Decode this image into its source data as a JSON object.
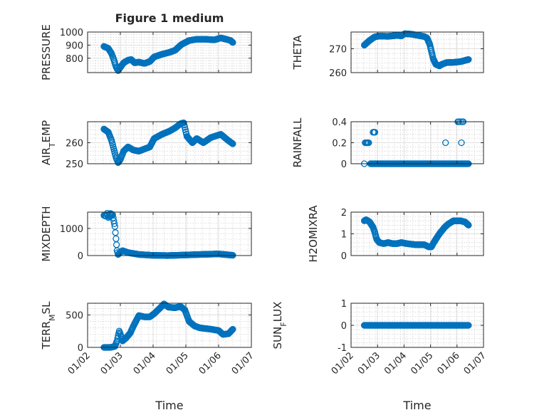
{
  "figure": {
    "title": "Figure 1 medium",
    "xlabel": "Time"
  },
  "colors": {
    "marker": "#0072bd",
    "axes": "#262626",
    "grid": "#dfdfdf",
    "background": "#ffffff"
  },
  "chart_data": [
    {
      "id": "pressure",
      "type": "scatter",
      "title": "Figure 1 medium",
      "ylabel": "PRESSURE",
      "xlabel": "",
      "ylim": [
        690,
        1000
      ],
      "yticks": [
        800,
        900,
        1000
      ],
      "xlim": [
        "2001-02-01",
        "2001-07-01"
      ],
      "xticks": [
        "01/02",
        "01/03",
        "01/04",
        "01/05",
        "01/06",
        "01/07"
      ],
      "show_xticklabels": false,
      "grid": true,
      "keypoints": [
        [
          "2001-02-16",
          890
        ],
        [
          "2001-02-20",
          875
        ],
        [
          "2001-02-23",
          835
        ],
        [
          "2001-02-25",
          790
        ],
        [
          "2001-02-27",
          735
        ],
        [
          "2001-03-01",
          705
        ],
        [
          "2001-03-03",
          730
        ],
        [
          "2001-03-06",
          765
        ],
        [
          "2001-03-10",
          785
        ],
        [
          "2001-03-13",
          790
        ],
        [
          "2001-03-16",
          765
        ],
        [
          "2001-03-20",
          770
        ],
        [
          "2001-03-25",
          760
        ],
        [
          "2001-03-30",
          775
        ],
        [
          "2001-04-03",
          810
        ],
        [
          "2001-04-10",
          830
        ],
        [
          "2001-04-17",
          845
        ],
        [
          "2001-04-22",
          860
        ],
        [
          "2001-04-28",
          905
        ],
        [
          "2001-05-05",
          935
        ],
        [
          "2001-05-12",
          945
        ],
        [
          "2001-05-20",
          945
        ],
        [
          "2001-05-28",
          940
        ],
        [
          "2001-06-03",
          955
        ],
        [
          "2001-06-08",
          945
        ],
        [
          "2001-06-12",
          935
        ],
        [
          "2001-06-14",
          920
        ]
      ]
    },
    {
      "id": "theta",
      "type": "scatter",
      "ylabel": "THETA",
      "xlabel": "",
      "ylim": [
        260,
        277
      ],
      "yticks": [
        260,
        270
      ],
      "xlim": [
        "2001-02-01",
        "2001-07-01"
      ],
      "xticks": [
        "01/02",
        "01/03",
        "01/04",
        "01/05",
        "01/06",
        "01/07"
      ],
      "show_xticklabels": false,
      "grid": true,
      "keypoints": [
        [
          "2001-02-16",
          271.5
        ],
        [
          "2001-02-22",
          273.5
        ],
        [
          "2001-02-28",
          275
        ],
        [
          "2001-03-05",
          275.3
        ],
        [
          "2001-03-15",
          275.2
        ],
        [
          "2001-03-25",
          275.6
        ],
        [
          "2001-03-30",
          275.4
        ],
        [
          "2001-04-03",
          276.3
        ],
        [
          "2001-04-10",
          276.1
        ],
        [
          "2001-04-18",
          275.6
        ],
        [
          "2001-04-25",
          275.1
        ],
        [
          "2001-04-28",
          274.5
        ],
        [
          "2001-05-01",
          272
        ],
        [
          "2001-05-03",
          269
        ],
        [
          "2001-05-05",
          265.8
        ],
        [
          "2001-05-08",
          263.5
        ],
        [
          "2001-05-12",
          262.8
        ],
        [
          "2001-05-15",
          263.5
        ],
        [
          "2001-05-20",
          264.2
        ],
        [
          "2001-05-28",
          264.3
        ],
        [
          "2001-06-05",
          264.6
        ],
        [
          "2001-06-14",
          265.5
        ]
      ]
    },
    {
      "id": "air_temp",
      "type": "scatter",
      "ylabel": "AIR_TEMP",
      "xlabel": "",
      "ylim": [
        250,
        270
      ],
      "yticks": [
        250,
        260
      ],
      "xlim": [
        "2001-02-01",
        "2001-07-01"
      ],
      "xticks": [
        "01/02",
        "01/03",
        "01/04",
        "01/05",
        "01/06",
        "01/07"
      ],
      "show_xticklabels": false,
      "grid": true,
      "keypoints": [
        [
          "2001-02-16",
          266.5
        ],
        [
          "2001-02-20",
          265
        ],
        [
          "2001-02-23",
          261
        ],
        [
          "2001-02-25",
          257
        ],
        [
          "2001-02-27",
          253
        ],
        [
          "2001-03-01",
          250.5
        ],
        [
          "2001-03-03",
          252
        ],
        [
          "2001-03-06",
          256
        ],
        [
          "2001-03-10",
          258
        ],
        [
          "2001-03-15",
          256.5
        ],
        [
          "2001-03-20",
          256
        ],
        [
          "2001-03-25",
          257
        ],
        [
          "2001-03-30",
          258
        ],
        [
          "2001-04-03",
          262
        ],
        [
          "2001-04-10",
          264
        ],
        [
          "2001-04-17",
          265.5
        ],
        [
          "2001-04-22",
          267
        ],
        [
          "2001-04-27",
          269
        ],
        [
          "2001-04-30",
          269.5
        ],
        [
          "2001-05-03",
          263
        ],
        [
          "2001-05-08",
          260
        ],
        [
          "2001-05-12",
          262
        ],
        [
          "2001-05-18",
          260
        ],
        [
          "2001-05-25",
          262.5
        ],
        [
          "2001-06-03",
          264
        ],
        [
          "2001-06-10",
          261
        ],
        [
          "2001-06-14",
          259.5
        ]
      ]
    },
    {
      "id": "rainfall",
      "type": "scatter",
      "ylabel": "RAINFALL",
      "xlabel": "",
      "ylim": [
        0,
        0.4
      ],
      "yticks": [
        0,
        0.2,
        0.4
      ],
      "xlim": [
        "2001-02-01",
        "2001-07-01"
      ],
      "xticks": [
        "01/02",
        "01/03",
        "01/04",
        "01/05",
        "01/06",
        "01/07"
      ],
      "show_xticklabels": false,
      "grid": true,
      "zero_range": [
        "2001-02-23",
        "2001-06-14"
      ],
      "extra_points": [
        [
          "2001-02-16",
          0
        ],
        [
          "2001-02-17",
          0.2
        ],
        [
          "2001-02-18",
          0.2
        ],
        [
          "2001-02-19",
          0.2
        ],
        [
          "2001-02-20",
          0.2
        ],
        [
          "2001-02-21",
          0.2
        ],
        [
          "2001-02-26",
          0.3
        ],
        [
          "2001-02-27",
          0.3
        ],
        [
          "2001-02-28",
          0.3
        ],
        [
          "2001-05-19",
          0.2
        ],
        [
          "2001-06-02",
          0.4
        ],
        [
          "2001-06-03",
          0.4
        ],
        [
          "2001-06-05",
          0.4
        ],
        [
          "2001-06-06",
          0.2
        ],
        [
          "2001-06-07",
          0.4
        ],
        [
          "2001-06-08",
          0.4
        ],
        [
          "2001-06-10",
          0
        ]
      ]
    },
    {
      "id": "mixdepth",
      "type": "scatter",
      "ylabel": "MIXDEPTH",
      "xlabel": "",
      "ylim": [
        0,
        1600
      ],
      "yticks": [
        0,
        1000
      ],
      "xlim": [
        "2001-02-01",
        "2001-07-01"
      ],
      "xticks": [
        "01/02",
        "01/03",
        "01/04",
        "01/05",
        "01/06",
        "01/07"
      ],
      "show_xticklabels": false,
      "grid": true,
      "keypoints": [
        [
          "2001-02-16",
          1480
        ],
        [
          "2001-02-18",
          1450
        ],
        [
          "2001-02-19",
          1560
        ],
        [
          "2001-02-20",
          1400
        ],
        [
          "2001-02-22",
          1550
        ],
        [
          "2001-02-24",
          1500
        ],
        [
          "2001-02-25",
          1280
        ],
        [
          "2001-02-26",
          1070
        ],
        [
          "2001-02-27",
          620
        ],
        [
          "2001-02-28",
          180
        ],
        [
          "2001-03-01",
          40
        ],
        [
          "2001-03-03",
          120
        ],
        [
          "2001-03-05",
          180
        ],
        [
          "2001-03-10",
          110
        ],
        [
          "2001-03-20",
          40
        ],
        [
          "2001-04-01",
          10
        ],
        [
          "2001-04-15",
          0
        ],
        [
          "2001-05-01",
          20
        ],
        [
          "2001-05-15",
          40
        ],
        [
          "2001-06-01",
          60
        ],
        [
          "2001-06-14",
          10
        ]
      ]
    },
    {
      "id": "h2omixra",
      "type": "scatter",
      "ylabel": "H2OMIXRA",
      "xlabel": "",
      "ylim": [
        0,
        2
      ],
      "yticks": [
        0,
        1,
        2
      ],
      "xlim": [
        "2001-02-01",
        "2001-07-01"
      ],
      "xticks": [
        "01/02",
        "01/03",
        "01/04",
        "01/05",
        "01/06",
        "01/07"
      ],
      "show_xticklabels": false,
      "grid": true,
      "keypoints": [
        [
          "2001-02-16",
          1.6
        ],
        [
          "2001-02-18",
          1.65
        ],
        [
          "2001-02-22",
          1.55
        ],
        [
          "2001-02-26",
          1.3
        ],
        [
          "2001-02-28",
          1.05
        ],
        [
          "2001-03-02",
          0.75
        ],
        [
          "2001-03-05",
          0.6
        ],
        [
          "2001-03-10",
          0.55
        ],
        [
          "2001-03-15",
          0.6
        ],
        [
          "2001-03-20",
          0.55
        ],
        [
          "2001-03-25",
          0.55
        ],
        [
          "2001-03-30",
          0.6
        ],
        [
          "2001-04-05",
          0.55
        ],
        [
          "2001-04-15",
          0.5
        ],
        [
          "2001-04-25",
          0.5
        ],
        [
          "2001-04-30",
          0.4
        ],
        [
          "2001-05-03",
          0.4
        ],
        [
          "2001-05-05",
          0.55
        ],
        [
          "2001-05-08",
          0.75
        ],
        [
          "2001-05-12",
          1.0
        ],
        [
          "2001-05-18",
          1.3
        ],
        [
          "2001-05-22",
          1.45
        ],
        [
          "2001-05-28",
          1.6
        ],
        [
          "2001-06-05",
          1.6
        ],
        [
          "2001-06-10",
          1.55
        ],
        [
          "2001-06-14",
          1.4
        ]
      ]
    },
    {
      "id": "terr_msl",
      "type": "scatter",
      "ylabel": "TERR_MSL",
      "xlabel": "Time",
      "ylim": [
        0,
        680
      ],
      "yticks": [
        0,
        500
      ],
      "xlim": [
        "2001-02-01",
        "2001-07-01"
      ],
      "xticks": [
        "01/02",
        "01/03",
        "01/04",
        "01/05",
        "01/06",
        "01/07"
      ],
      "show_xticklabels": true,
      "grid": true,
      "keypoints": [
        [
          "2001-02-16",
          0
        ],
        [
          "2001-02-22",
          0
        ],
        [
          "2001-02-26",
          15
        ],
        [
          "2001-02-28",
          100
        ],
        [
          "2001-03-02",
          250
        ],
        [
          "2001-03-04",
          160
        ],
        [
          "2001-03-05",
          100
        ],
        [
          "2001-03-08",
          140
        ],
        [
          "2001-03-12",
          220
        ],
        [
          "2001-03-15",
          330
        ],
        [
          "2001-03-20",
          490
        ],
        [
          "2001-03-25",
          470
        ],
        [
          "2001-03-30",
          470
        ],
        [
          "2001-04-03",
          520
        ],
        [
          "2001-04-08",
          600
        ],
        [
          "2001-04-12",
          670
        ],
        [
          "2001-04-16",
          620
        ],
        [
          "2001-04-22",
          610
        ],
        [
          "2001-04-27",
          630
        ],
        [
          "2001-05-01",
          580
        ],
        [
          "2001-05-05",
          400
        ],
        [
          "2001-05-10",
          330
        ],
        [
          "2001-05-15",
          300
        ],
        [
          "2001-05-25",
          280
        ],
        [
          "2001-06-01",
          260
        ],
        [
          "2001-06-05",
          200
        ],
        [
          "2001-06-10",
          210
        ],
        [
          "2001-06-14",
          280
        ]
      ]
    },
    {
      "id": "sun_flux",
      "type": "scatter",
      "ylabel": "SUN_FLUX",
      "xlabel": "Time",
      "ylim": [
        -1,
        1
      ],
      "yticks": [
        -1,
        0,
        1
      ],
      "xlim": [
        "2001-02-01",
        "2001-07-01"
      ],
      "xticks": [
        "01/02",
        "01/03",
        "01/04",
        "01/05",
        "01/06",
        "01/07"
      ],
      "show_xticklabels": true,
      "grid": true,
      "zero_range": [
        "2001-02-16",
        "2001-06-14"
      ]
    }
  ]
}
